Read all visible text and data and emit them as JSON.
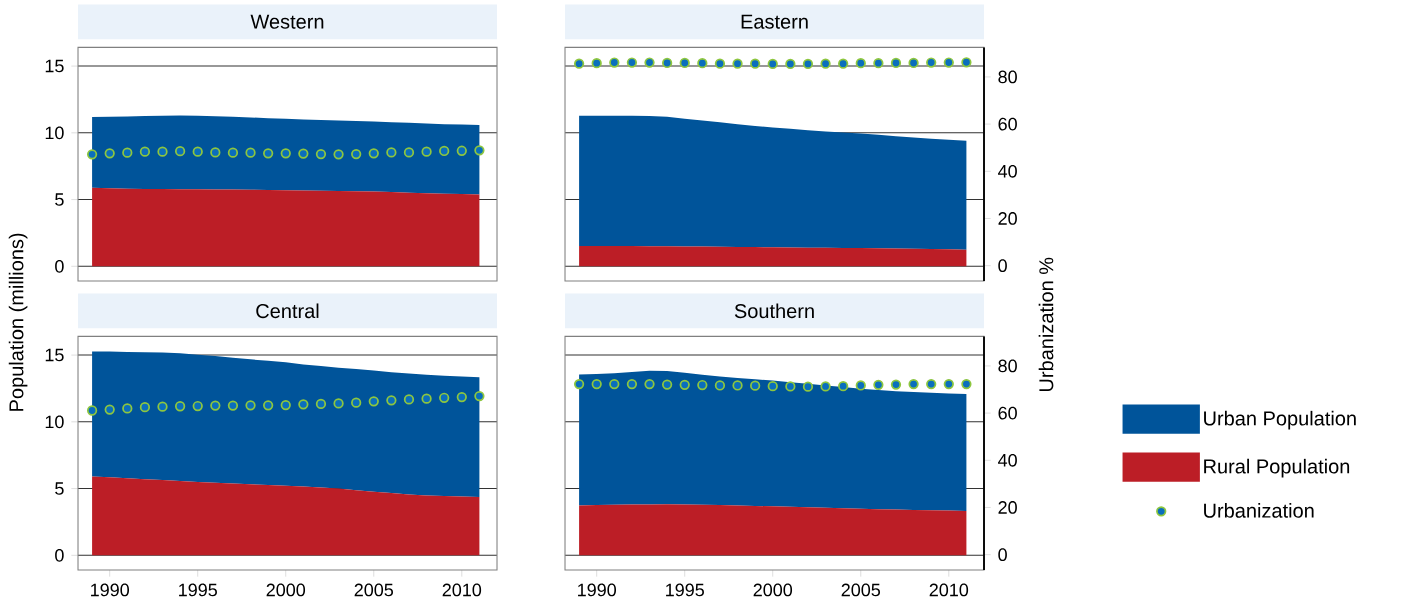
{
  "chart_data": [
    {
      "type": "area",
      "title": "Western",
      "stacked": true,
      "grid": "y",
      "tick_labels": "y",
      "x": [
        1989,
        1990,
        1991,
        1992,
        1993,
        1994,
        1995,
        1996,
        1997,
        1998,
        1999,
        2000,
        2001,
        2002,
        2003,
        2004,
        2005,
        2006,
        2007,
        2008,
        2009,
        2010,
        2011
      ],
      "xlim": [
        1988.2,
        2012
      ],
      "ylim": [
        -1.1,
        16.4
      ],
      "yticks": [
        0,
        5,
        10,
        15
      ],
      "y2lim": [
        -6.5,
        92.5
      ],
      "series": [
        {
          "color": "#bc1e26",
          "values": [
            5.88,
            5.85,
            5.82,
            5.8,
            5.79,
            5.78,
            5.77,
            5.76,
            5.75,
            5.74,
            5.72,
            5.7,
            5.68,
            5.66,
            5.64,
            5.62,
            5.6,
            5.56,
            5.52,
            5.48,
            5.44,
            5.41,
            5.38
          ]
        },
        {
          "color": "#00549a",
          "values": [
            5.3,
            5.35,
            5.41,
            5.46,
            5.49,
            5.52,
            5.51,
            5.49,
            5.45,
            5.41,
            5.38,
            5.35,
            5.32,
            5.31,
            5.29,
            5.27,
            5.25,
            5.24,
            5.23,
            5.22,
            5.21,
            5.21,
            5.2
          ]
        },
        {
          "type": "scatter",
          "axis": "y2",
          "marker": "circle",
          "color": "#0a6ebd",
          "values": [
            47.2,
            47.6,
            47.9,
            48.3,
            48.3,
            48.5,
            48.3,
            48.0,
            47.9,
            47.9,
            47.6,
            47.6,
            47.5,
            47.3,
            47.2,
            47.3,
            47.6,
            48.0,
            48.0,
            48.3,
            48.6,
            48.7,
            48.9
          ]
        }
      ]
    },
    {
      "type": "area",
      "title": "Eastern",
      "stacked": true,
      "grid": "y",
      "tick_labels": "y2",
      "x": [
        1989,
        1990,
        1991,
        1992,
        1993,
        1994,
        1995,
        1996,
        1997,
        1998,
        1999,
        2000,
        2001,
        2002,
        2003,
        2004,
        2005,
        2006,
        2007,
        2008,
        2009,
        2010,
        2011
      ],
      "xlim": [
        1988.2,
        2012
      ],
      "ylim": [
        -1.1,
        16.4
      ],
      "y2lim": [
        -6.5,
        92.5
      ],
      "y2ticks": [
        0,
        20,
        40,
        60,
        80
      ],
      "series": [
        {
          "color": "#bc1e26",
          "values": [
            1.52,
            1.52,
            1.52,
            1.52,
            1.51,
            1.5,
            1.49,
            1.48,
            1.46,
            1.45,
            1.44,
            1.42,
            1.41,
            1.4,
            1.39,
            1.38,
            1.37,
            1.35,
            1.33,
            1.31,
            1.29,
            1.27,
            1.25
          ]
        },
        {
          "color": "#00549a",
          "values": [
            9.76,
            9.76,
            9.76,
            9.76,
            9.76,
            9.7,
            9.56,
            9.45,
            9.34,
            9.2,
            9.08,
            8.98,
            8.89,
            8.8,
            8.71,
            8.64,
            8.58,
            8.5,
            8.42,
            8.34,
            8.26,
            8.21,
            8.15
          ]
        },
        {
          "type": "scatter",
          "axis": "y2",
          "marker": "circle",
          "color": "#0a6ebd",
          "values": [
            85.6,
            85.8,
            86.1,
            86.1,
            86.1,
            85.9,
            85.9,
            85.8,
            85.6,
            85.6,
            85.6,
            85.5,
            85.5,
            85.5,
            85.6,
            85.6,
            85.8,
            85.8,
            85.9,
            85.9,
            86.1,
            86.1,
            86.2
          ]
        }
      ]
    },
    {
      "type": "area",
      "title": "Central",
      "ylabel": "Population (millions)",
      "stacked": true,
      "grid": "y",
      "tick_labels": "xy",
      "x": [
        1989,
        1990,
        1991,
        1992,
        1993,
        1994,
        1995,
        1996,
        1997,
        1998,
        1999,
        2000,
        2001,
        2002,
        2003,
        2004,
        2005,
        2006,
        2007,
        2008,
        2009,
        2010,
        2011
      ],
      "xlim": [
        1988.2,
        2012
      ],
      "xticks": [
        1990,
        1995,
        2000,
        2005,
        2010
      ],
      "ylim": [
        -1.1,
        16.4
      ],
      "yticks": [
        0,
        5,
        10,
        15
      ],
      "y2lim": [
        -6.5,
        92.5
      ],
      "series": [
        {
          "color": "#bc1e26",
          "values": [
            5.91,
            5.84,
            5.77,
            5.7,
            5.64,
            5.56,
            5.49,
            5.44,
            5.38,
            5.32,
            5.26,
            5.21,
            5.15,
            5.08,
            5.0,
            4.88,
            4.76,
            4.66,
            4.56,
            4.49,
            4.44,
            4.4,
            4.36
          ]
        },
        {
          "color": "#00549a",
          "values": [
            9.35,
            9.42,
            9.46,
            9.51,
            9.56,
            9.57,
            9.54,
            9.49,
            9.42,
            9.36,
            9.31,
            9.25,
            9.15,
            9.1,
            9.05,
            9.07,
            9.08,
            9.06,
            9.06,
            9.03,
            9.01,
            9.0,
            8.98
          ]
        },
        {
          "type": "scatter",
          "axis": "y2",
          "marker": "circle",
          "color": "#0a6ebd",
          "values": [
            61.1,
            61.5,
            62.0,
            62.5,
            62.7,
            62.9,
            63.0,
            63.2,
            63.2,
            63.3,
            63.3,
            63.4,
            63.7,
            63.9,
            64.1,
            64.4,
            65.0,
            65.4,
            65.8,
            66.1,
            66.5,
            66.8,
            67.2
          ]
        }
      ]
    },
    {
      "type": "area",
      "title": "Southern",
      "y2label": "Urbanization %",
      "stacked": true,
      "grid": "y",
      "tick_labels": "xy2",
      "legend": "right",
      "x": [
        1989,
        1990,
        1991,
        1992,
        1993,
        1994,
        1995,
        1996,
        1997,
        1998,
        1999,
        2000,
        2001,
        2002,
        2003,
        2004,
        2005,
        2006,
        2007,
        2008,
        2009,
        2010,
        2011
      ],
      "xlim": [
        1988.2,
        2012
      ],
      "xticks": [
        1990,
        1995,
        2000,
        2005,
        2010
      ],
      "ylim": [
        -1.1,
        16.4
      ],
      "y2lim": [
        -6.5,
        92.5
      ],
      "y2ticks": [
        0,
        20,
        40,
        60,
        80
      ],
      "series": [
        {
          "name": "Rural Population",
          "color": "#bc1e26",
          "values": [
            3.74,
            3.76,
            3.78,
            3.8,
            3.81,
            3.82,
            3.81,
            3.79,
            3.76,
            3.73,
            3.7,
            3.67,
            3.64,
            3.6,
            3.57,
            3.53,
            3.49,
            3.46,
            3.43,
            3.4,
            3.37,
            3.35,
            3.32
          ]
        },
        {
          "name": "Urban Population",
          "color": "#00549a",
          "values": [
            9.8,
            9.83,
            9.86,
            9.93,
            10.01,
            9.98,
            9.86,
            9.74,
            9.63,
            9.56,
            9.49,
            9.42,
            9.33,
            9.25,
            9.15,
            9.07,
            8.98,
            8.92,
            8.86,
            8.84,
            8.81,
            8.78,
            8.77
          ]
        },
        {
          "name": "Urbanization",
          "type": "scatter",
          "axis": "y2",
          "marker": "circle",
          "color": "#0a6ebd",
          "values": [
            72.3,
            72.3,
            72.3,
            72.3,
            72.3,
            72.1,
            72.0,
            71.9,
            71.7,
            71.7,
            71.6,
            71.4,
            71.3,
            71.2,
            71.3,
            71.4,
            71.7,
            72.0,
            72.1,
            72.3,
            72.3,
            72.3,
            72.3
          ]
        }
      ]
    }
  ]
}
